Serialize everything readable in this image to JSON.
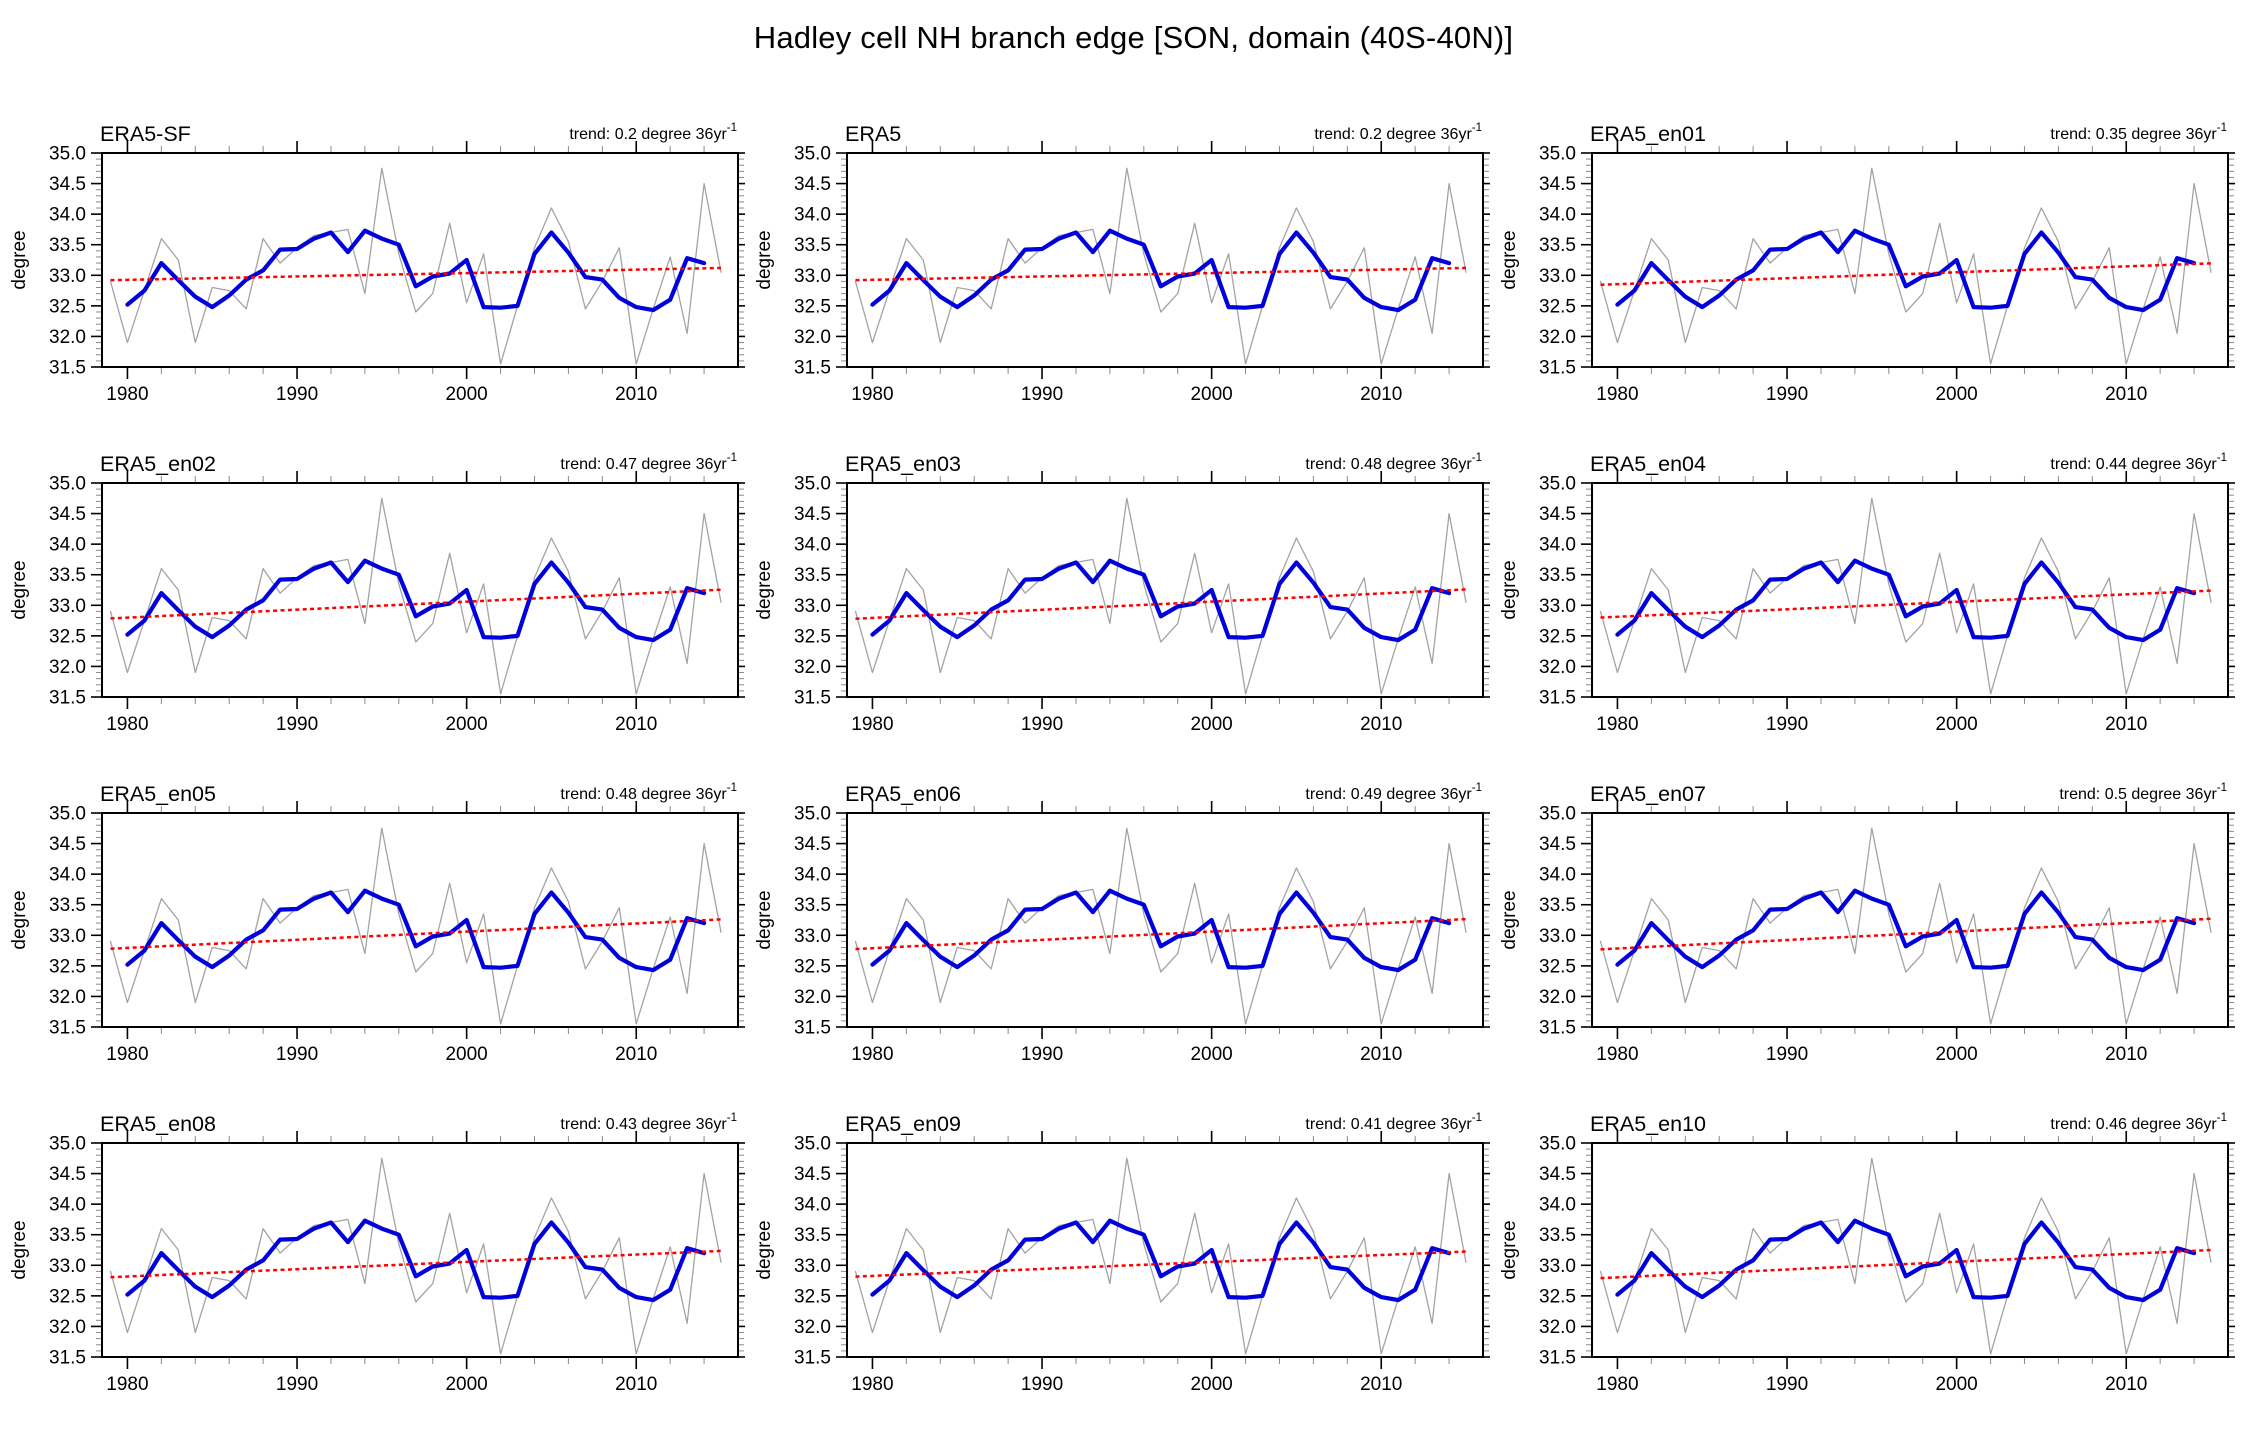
{
  "page_title": "Hadley cell NH branch edge [SON, domain (40S-40N)]",
  "colors": {
    "annual_line": "#a3a3a3",
    "smoothed_line": "#0000dd",
    "trend_line": "#ff0000",
    "axis": "#000000",
    "minor_tick": "#8a8a8a"
  },
  "chart_data": {
    "type": "line",
    "grid": false,
    "ylabel": "degree",
    "ylim": [
      31.5,
      35.0
    ],
    "ytick_step": 0.5,
    "y_tick_labels": [
      "35.0",
      "34.5",
      "34.0",
      "33.5",
      "33.0",
      "32.5",
      "32.0",
      "31.5"
    ],
    "xlim": [
      1978.5,
      2016
    ],
    "x_major_ticks": [
      1980,
      1990,
      2000,
      2010
    ],
    "x_tick_labels": [
      "1980",
      "1990",
      "2000",
      "2010"
    ],
    "x_minor_step_years": 2,
    "y_minor_step": 0.1,
    "legend": "none",
    "series": [
      {
        "name": "annual",
        "color": "#a3a3a3",
        "width": 1.3,
        "years": [
          1979,
          1980,
          1981,
          1982,
          1983,
          1984,
          1985,
          1986,
          1987,
          1988,
          1989,
          1990,
          1991,
          1992,
          1993,
          1994,
          1995,
          1996,
          1997,
          1998,
          1999,
          2000,
          2001,
          2002,
          2003,
          2004,
          2005,
          2006,
          2007,
          2008,
          2009,
          2010,
          2011,
          2012,
          2013,
          2014,
          2015
        ],
        "values": [
          32.9,
          31.9,
          32.75,
          33.6,
          33.25,
          31.9,
          32.8,
          32.75,
          32.45,
          33.6,
          33.2,
          33.45,
          33.65,
          33.7,
          33.75,
          32.7,
          34.75,
          33.35,
          32.4,
          32.7,
          33.85,
          32.55,
          33.35,
          31.55,
          32.5,
          33.45,
          34.1,
          33.55,
          32.45,
          32.9,
          33.45,
          31.55,
          32.45,
          33.3,
          32.05,
          34.5,
          33.05
        ]
      },
      {
        "name": "smoothed",
        "color": "#0000dd",
        "width": 4.2,
        "years": [
          1980,
          1981,
          1982,
          1983,
          1984,
          1985,
          1986,
          1987,
          1988,
          1989,
          1990,
          1991,
          1992,
          1993,
          1994,
          1995,
          1996,
          1997,
          1998,
          1999,
          2000,
          2001,
          2002,
          2003,
          2004,
          2005,
          2006,
          2007,
          2008,
          2009,
          2010,
          2011,
          2012,
          2013,
          2014
        ],
        "values": [
          32.52,
          32.75,
          33.2,
          32.92,
          32.65,
          32.48,
          32.67,
          32.93,
          33.08,
          33.42,
          33.43,
          33.6,
          33.7,
          33.38,
          33.73,
          33.6,
          33.5,
          32.82,
          32.98,
          33.03,
          33.25,
          32.48,
          32.47,
          32.5,
          33.35,
          33.7,
          33.37,
          32.97,
          32.93,
          32.63,
          32.48,
          32.43,
          32.6,
          33.28,
          33.2
        ]
      }
    ],
    "panels": [
      {
        "title": "ERA5-SF",
        "trend_value": 0.2,
        "trend_text": "trend: 0.2 degree 36yr",
        "trend_sup": "-1",
        "trend_start": 32.92,
        "trend_end": 33.12
      },
      {
        "title": "ERA5",
        "trend_value": 0.2,
        "trend_text": "trend: 0.2 degree 36yr",
        "trend_sup": "-1",
        "trend_start": 32.92,
        "trend_end": 33.12
      },
      {
        "title": "ERA5_en01",
        "trend_value": 0.35,
        "trend_text": "trend: 0.35 degree 36yr",
        "trend_sup": "-1",
        "trend_start": 32.845,
        "trend_end": 33.195
      },
      {
        "title": "ERA5_en02",
        "trend_value": 0.47,
        "trend_text": "trend: 0.47 degree 36yr",
        "trend_sup": "-1",
        "trend_start": 32.785,
        "trend_end": 33.255
      },
      {
        "title": "ERA5_en03",
        "trend_value": 0.48,
        "trend_text": "trend: 0.48 degree 36yr",
        "trend_sup": "-1",
        "trend_start": 32.78,
        "trend_end": 33.26
      },
      {
        "title": "ERA5_en04",
        "trend_value": 0.44,
        "trend_text": "trend: 0.44 degree 36yr",
        "trend_sup": "-1",
        "trend_start": 32.8,
        "trend_end": 33.24
      },
      {
        "title": "ERA5_en05",
        "trend_value": 0.48,
        "trend_text": "trend: 0.48 degree 36yr",
        "trend_sup": "-1",
        "trend_start": 32.78,
        "trend_end": 33.26
      },
      {
        "title": "ERA5_en06",
        "trend_value": 0.49,
        "trend_text": "trend: 0.49 degree 36yr",
        "trend_sup": "-1",
        "trend_start": 32.775,
        "trend_end": 33.265
      },
      {
        "title": "ERA5_en07",
        "trend_value": 0.5,
        "trend_text": "trend: 0.5 degree 36yr",
        "trend_sup": "-1",
        "trend_start": 32.77,
        "trend_end": 33.27
      },
      {
        "title": "ERA5_en08",
        "trend_value": 0.43,
        "trend_text": "trend: 0.43 degree 36yr",
        "trend_sup": "-1",
        "trend_start": 32.805,
        "trend_end": 33.235
      },
      {
        "title": "ERA5_en09",
        "trend_value": 0.41,
        "trend_text": "trend: 0.41 degree 36yr",
        "trend_sup": "-1",
        "trend_start": 32.815,
        "trend_end": 33.225
      },
      {
        "title": "ERA5_en10",
        "trend_value": 0.46,
        "trend_text": "trend: 0.46 degree 36yr",
        "trend_sup": "-1",
        "trend_start": 32.79,
        "trend_end": 33.25
      }
    ]
  }
}
